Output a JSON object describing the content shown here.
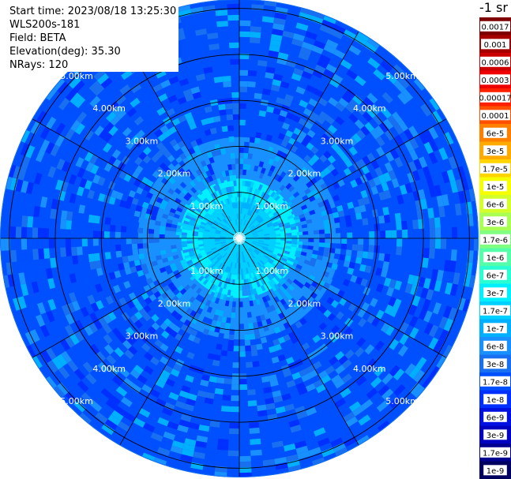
{
  "info": {
    "start_time": "Start time: 2023/08/18 13:25:30",
    "instrument": "WLS200s-181",
    "field": "Field: BETA",
    "elevation": "Elevation(deg): 35.30",
    "nrays": "NRays: 120"
  },
  "colorbar": {
    "unit_label": "-1 sr",
    "levels": [
      {
        "label": "0.0017",
        "color": "#7f0000"
      },
      {
        "label": "0.001",
        "color": "#a60000"
      },
      {
        "label": "0.0006",
        "color": "#cc0000"
      },
      {
        "label": "0.0003",
        "color": "#ee0000"
      },
      {
        "label": "0.00017",
        "color": "#ff2000"
      },
      {
        "label": "0.0001",
        "color": "#ff5000"
      },
      {
        "label": "6e-5",
        "color": "#ff8000"
      },
      {
        "label": "3e-5",
        "color": "#ffaa00"
      },
      {
        "label": "1.7e-5",
        "color": "#ffd400"
      },
      {
        "label": "1e-5",
        "color": "#f5ff00"
      },
      {
        "label": "6e-6",
        "color": "#d4ff2a"
      },
      {
        "label": "3e-6",
        "color": "#aaff55"
      },
      {
        "label": "1.7e-6",
        "color": "#80ff80"
      },
      {
        "label": "1e-6",
        "color": "#55ffaa"
      },
      {
        "label": "6e-7",
        "color": "#2affd4"
      },
      {
        "label": "3e-7",
        "color": "#00f0ff"
      },
      {
        "label": "1.7e-7",
        "color": "#00d0ff"
      },
      {
        "label": "1e-7",
        "color": "#00b0ff"
      },
      {
        "label": "6e-8",
        "color": "#1890ff"
      },
      {
        "label": "3e-8",
        "color": "#1870f0"
      },
      {
        "label": "1.7e-8",
        "color": "#0050ff"
      },
      {
        "label": "1e-8",
        "color": "#0030ff"
      },
      {
        "label": "6e-9",
        "color": "#0010e0"
      },
      {
        "label": "3e-9",
        "color": "#0000c0"
      },
      {
        "label": "1.7e-9",
        "color": "#000090"
      },
      {
        "label": "1e-9",
        "color": "#000060"
      }
    ]
  },
  "chart_data": {
    "type": "heatmap",
    "projection": "polar PPI",
    "ranges_km": [
      1,
      2,
      3,
      4,
      5
    ],
    "range_labels": [
      "1.00km",
      "2.00km",
      "3.00km",
      "4.00km",
      "5.00km"
    ],
    "max_range_km": 5.2,
    "n_rays": 120,
    "spoke_angles_deg": [
      0,
      30,
      60,
      90,
      120,
      150,
      180,
      210,
      240,
      270,
      300,
      330
    ],
    "field": "BETA",
    "field_pattern": [
      {
        "range_km": [
          0.0,
          0.8
        ],
        "level": "1.7e-7"
      },
      {
        "range_km": [
          0.8,
          1.3
        ],
        "level": "3e-7"
      },
      {
        "range_km": [
          1.3,
          2.2
        ],
        "level": "6e-8"
      },
      {
        "range_km": [
          2.2,
          4.0
        ],
        "level": "1.7e-8"
      },
      {
        "range_km": [
          4.0,
          5.2
        ],
        "level": "1.7e-8"
      }
    ],
    "colors": {
      "background": "#1890ff",
      "ring_color": "#000000",
      "label_color": "#ffffff"
    }
  }
}
